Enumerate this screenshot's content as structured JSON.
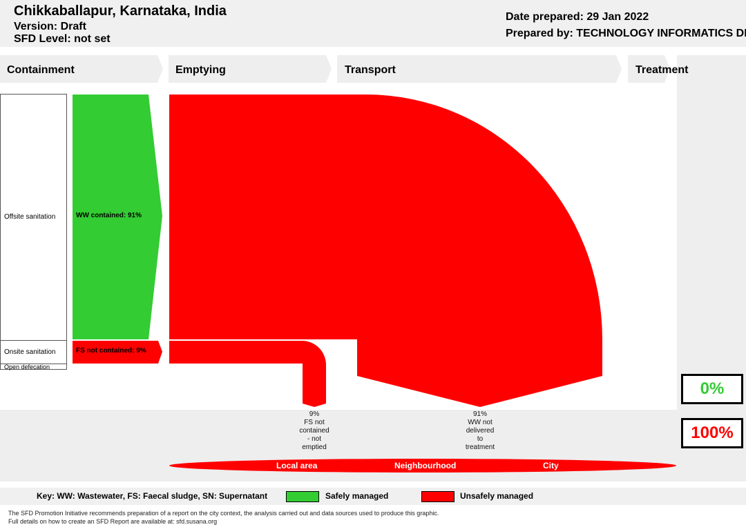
{
  "header": {
    "city": "Chikkaballapur, Karnataka, India",
    "version": "Version: Draft",
    "sfd_level": "SFD Level: not set",
    "date_prepared": "Date prepared: 29 Jan 2022",
    "prepared_by": "Prepared by: TECHNOLOGY INFORMATICS DESIGN ENDEAVOUR"
  },
  "stages": [
    "Containment",
    "Emptying",
    "Transport",
    "Treatment"
  ],
  "containment": {
    "offsite": "Offsite sanitation",
    "onsite": "Onsite sanitation",
    "open_defecation": "Open defecation"
  },
  "flows": {
    "ww_contained": "WW contained: 91%",
    "fs_not_contained": "FS not contained: 9%"
  },
  "outcomes": [
    {
      "pct": "9%",
      "lines": [
        "FS not",
        "contained",
        "- not",
        "emptied"
      ]
    },
    {
      "pct": "91%",
      "lines": [
        "WW not",
        "delivered",
        "to",
        "treatment"
      ]
    }
  ],
  "totals": {
    "safe": "0%",
    "unsafe": "100%",
    "safe_color": "#33cc33",
    "unsafe_color": "#ff0000"
  },
  "areas": [
    "Local area",
    "Neighbourhood",
    "City"
  ],
  "key": {
    "text": "Key: WW: Wastewater, FS: Faecal sludge, SN: Supernatant",
    "safe_label": "Safely managed",
    "unsafe_label": "Unsafely managed"
  },
  "footer": {
    "line1": "The SFD Promotion Initiative recommends preparation of a report on the city context, the analysis carried out and data sources used to produce this graphic.",
    "line2": "Full details on how to create an SFD Report are available at: sfd.susana.org"
  }
}
